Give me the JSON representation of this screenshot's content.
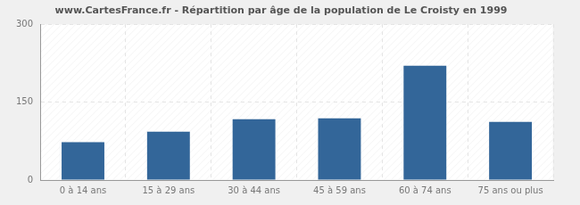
{
  "chart_data": {
    "type": "bar",
    "title": "www.CartesFrance.fr - Répartition par âge de la population de Le Croisty en 1999",
    "categories": [
      "0 à 14 ans",
      "15 à 29 ans",
      "30 à 44 ans",
      "45 à 59 ans",
      "60 à 74 ans",
      "75 ans ou plus"
    ],
    "values": [
      73,
      93,
      117,
      119,
      220,
      112
    ],
    "color": "#336699",
    "ylim": [
      0,
      300
    ],
    "yticks": [
      0,
      150,
      300
    ],
    "grid": true
  }
}
